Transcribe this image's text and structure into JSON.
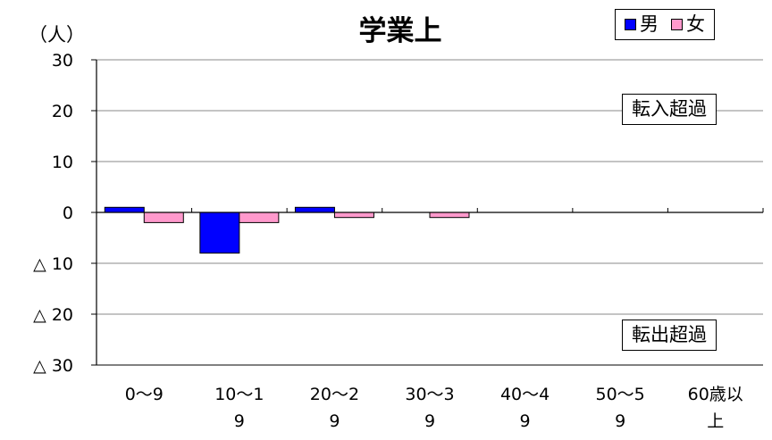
{
  "chart_data": {
    "type": "bar",
    "title": "学業上",
    "ylabel": "（人）",
    "ylim": [
      -30,
      30
    ],
    "yticks": [
      30,
      20,
      10,
      0,
      -10,
      -20,
      -30
    ],
    "ytick_labels": [
      "30",
      "20",
      "10",
      "0",
      "△ 10",
      "△ 20",
      "△ 30"
    ],
    "categories": [
      "0～9",
      "10～19",
      "20～29",
      "30～39",
      "40～49",
      "50～59",
      "60歳以上"
    ],
    "series": [
      {
        "name": "男",
        "color": "#0000FF",
        "values": [
          1,
          -8,
          1,
          0,
          0,
          0,
          0
        ]
      },
      {
        "name": "女",
        "color": "#FF99CC",
        "values": [
          -2,
          -2,
          -1,
          -1,
          0,
          0,
          0
        ]
      }
    ],
    "grid": true,
    "legend_position": "top-right",
    "annotations": {
      "upper": "転入超過",
      "lower": "転出超過"
    }
  }
}
